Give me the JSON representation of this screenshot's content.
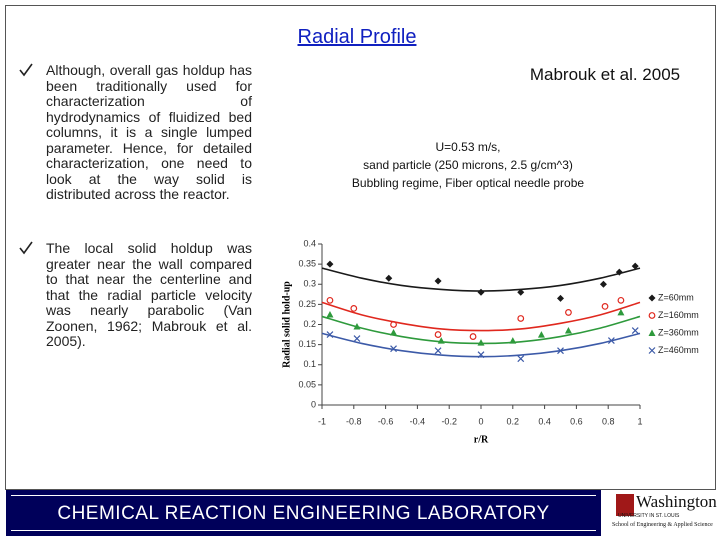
{
  "title": "Radial Profile",
  "bullets": [
    "Although, overall gas holdup has been traditionally used for characterization of hydrodynamics of fluidized bed columns, it is a single lumped parameter. Hence, for detailed characterization, one need to look at the way solid is distributed across the reactor.",
    "The local solid holdup was greater near the wall compared to that near the centerline and that the radial particle velocity was nearly parabolic (Van Zoonen, 1962; Mabrouk et al. 2005)."
  ],
  "citation": "Mabrouk et al. 2005",
  "conditions": [
    "U=0.53 m/s,",
    "sand particle (250 microns, 2.5 g/cm^3)",
    "Bubbling regime, Fiber optical needle probe"
  ],
  "footer": "CHEMICAL REACTION ENGINEERING LABORATORY",
  "logo": {
    "name": "Washington",
    "line1": "UNIVERSITY IN ST. LOUIS",
    "line2": "School of Engineering & Applied Science"
  },
  "chart_data": {
    "type": "scatter",
    "xlabel": "r/R",
    "ylabel": "Radial solid hold-up",
    "xlim": [
      -1,
      1
    ],
    "xticks": [
      -1,
      -0.8,
      -0.6,
      -0.4,
      -0.2,
      0,
      0.2,
      0.4,
      0.6,
      0.8,
      1
    ],
    "ylim": [
      0,
      0.4
    ],
    "yticks": [
      0,
      0.05,
      0.1,
      0.15,
      0.2,
      0.25,
      0.3,
      0.35,
      0.4
    ],
    "legend": "right",
    "series": [
      {
        "name": "Z=60mm",
        "color": "#1a1a1a",
        "marker": "diamond",
        "x": [
          -0.95,
          -0.58,
          -0.27,
          0,
          0.25,
          0.5,
          0.77,
          0.87,
          0.97
        ],
        "values": [
          0.35,
          0.315,
          0.308,
          0.28,
          0.28,
          0.265,
          0.3,
          0.33,
          0.345
        ],
        "trend": {
          "x": [
            -1,
            -0.75,
            -0.5,
            -0.25,
            0,
            0.25,
            0.5,
            0.75,
            1
          ],
          "values": [
            0.34,
            0.315,
            0.297,
            0.287,
            0.283,
            0.287,
            0.297,
            0.315,
            0.34
          ]
        }
      },
      {
        "name": "Z=160mm",
        "color": "#e0281e",
        "marker": "circle",
        "x": [
          -0.95,
          -0.8,
          -0.55,
          -0.27,
          -0.05,
          0.25,
          0.55,
          0.78,
          0.88
        ],
        "values": [
          0.26,
          0.24,
          0.2,
          0.175,
          0.17,
          0.215,
          0.23,
          0.245,
          0.26
        ],
        "trend": {
          "x": [
            -1,
            -0.75,
            -0.5,
            -0.25,
            0,
            0.25,
            0.5,
            0.75,
            1
          ],
          "values": [
            0.255,
            0.224,
            0.203,
            0.189,
            0.185,
            0.189,
            0.203,
            0.224,
            0.255
          ]
        }
      },
      {
        "name": "Z=360mm",
        "color": "#2e9a3c",
        "marker": "triangle",
        "x": [
          -0.95,
          -0.78,
          -0.55,
          -0.25,
          0,
          0.2,
          0.38,
          0.55,
          0.88
        ],
        "values": [
          0.225,
          0.195,
          0.18,
          0.16,
          0.155,
          0.16,
          0.175,
          0.185,
          0.23
        ],
        "trend": {
          "x": [
            -1,
            -0.75,
            -0.5,
            -0.25,
            0,
            0.25,
            0.5,
            0.75,
            1
          ],
          "values": [
            0.22,
            0.191,
            0.17,
            0.157,
            0.153,
            0.157,
            0.17,
            0.191,
            0.22
          ]
        }
      },
      {
        "name": "Z=460mm",
        "color": "#3c5aa8",
        "marker": "x",
        "x": [
          -0.95,
          -0.78,
          -0.55,
          -0.27,
          0,
          0.25,
          0.5,
          0.82,
          0.97
        ],
        "values": [
          0.175,
          0.165,
          0.14,
          0.135,
          0.125,
          0.115,
          0.135,
          0.16,
          0.185
        ],
        "trend": {
          "x": [
            -1,
            -0.75,
            -0.5,
            -0.25,
            0,
            0.25,
            0.5,
            0.75,
            1
          ],
          "values": [
            0.178,
            0.153,
            0.135,
            0.124,
            0.12,
            0.124,
            0.135,
            0.153,
            0.178
          ]
        }
      }
    ]
  }
}
